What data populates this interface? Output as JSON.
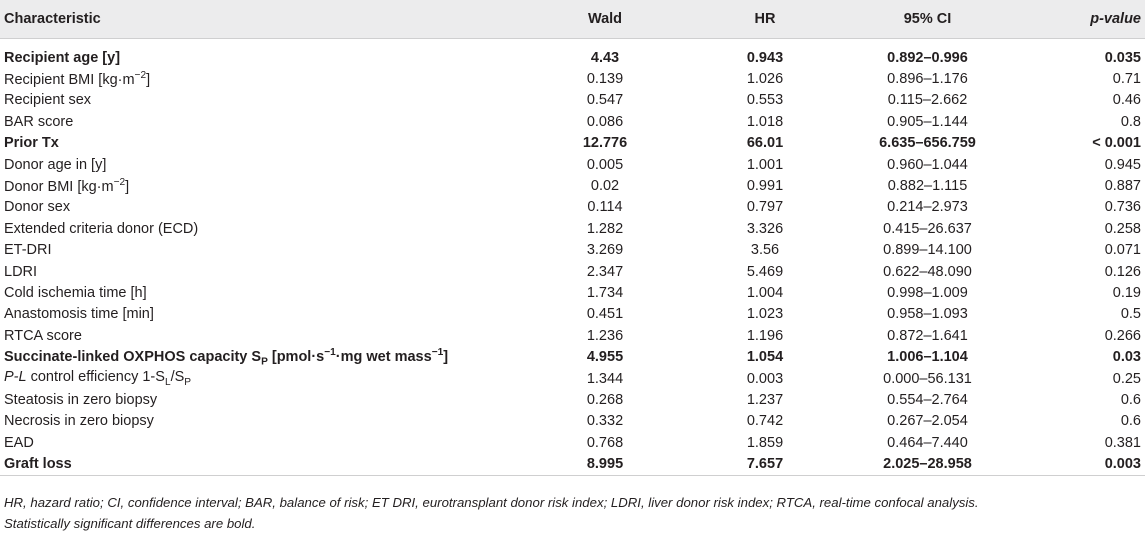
{
  "columns": [
    "Characteristic",
    "Wald",
    "HR",
    "95% CI",
    "p-value"
  ],
  "rows": [
    {
      "label": "Recipient age [y]",
      "wald": "4.43",
      "hr": "0.943",
      "ci": "0.892–0.996",
      "p": "0.035",
      "bold": true
    },
    {
      "label": "Recipient BMI [kg·m",
      "label_sup": "−2",
      "label_after": "]",
      "wald": "0.139",
      "hr": "1.026",
      "ci": "0.896–1.176",
      "p": "0.71",
      "bold": false
    },
    {
      "label": "Recipient sex",
      "wald": "0.547",
      "hr": "0.553",
      "ci": "0.115–2.662",
      "p": "0.46",
      "bold": false
    },
    {
      "label": "BAR score",
      "wald": "0.086",
      "hr": "1.018",
      "ci": "0.905–1.144",
      "p": "0.8",
      "bold": false
    },
    {
      "label": "Prior Tx",
      "wald": "12.776",
      "hr": "66.01",
      "ci": "6.635–656.759",
      "p": "< 0.001",
      "bold": true
    },
    {
      "label": "Donor age in [y]",
      "wald": "0.005",
      "hr": "1.001",
      "ci": "0.960–1.044",
      "p": "0.945",
      "bold": false
    },
    {
      "label": "Donor BMI [kg·m",
      "label_sup": "−2",
      "label_after": "]",
      "wald": "0.02",
      "hr": "0.991",
      "ci": "0.882–1.115",
      "p": "0.887",
      "bold": false
    },
    {
      "label": "Donor sex",
      "wald": "0.114",
      "hr": "0.797",
      "ci": "0.214–2.973",
      "p": "0.736",
      "bold": false
    },
    {
      "label": "Extended criteria donor (ECD)",
      "wald": "1.282",
      "hr": "3.326",
      "ci": "0.415–26.637",
      "p": "0.258",
      "bold": false
    },
    {
      "label": "ET-DRI",
      "wald": "3.269",
      "hr": "3.56",
      "ci": "0.899–14.100",
      "p": "0.071",
      "bold": false
    },
    {
      "label": "LDRI",
      "wald": "2.347",
      "hr": "5.469",
      "ci": "0.622–48.090",
      "p": "0.126",
      "bold": false
    },
    {
      "label": "Cold ischemia time [h]",
      "wald": "1.734",
      "hr": "1.004",
      "ci": "0.998–1.009",
      "p": "0.19",
      "bold": false
    },
    {
      "label": "Anastomosis time [min]",
      "wald": "0.451",
      "hr": "1.023",
      "ci": "0.958–1.093",
      "p": "0.5",
      "bold": false
    },
    {
      "label": "RTCA score",
      "wald": "1.236",
      "hr": "1.196",
      "ci": "0.872–1.641",
      "p": "0.266",
      "bold": false
    },
    {
      "label": "Succinate-linked OXPHOS capacity S",
      "label_sub": "P",
      "label_after": " [pmol·s",
      "label_sup2": "−1",
      "label_after2": "·mg wet mass",
      "label_sup3": "−1",
      "label_after3": "]",
      "wald": "4.955",
      "hr": "1.054",
      "ci": "1.006–1.104",
      "p": "0.03",
      "bold": true
    },
    {
      "label_italic": "P-L",
      "label": " control efficiency 1-S",
      "label_sub": "L",
      "label_after": "/S",
      "label_sub2": "P",
      "wald": "1.344",
      "hr": "0.003",
      "ci": "0.000–56.131",
      "p": "0.25",
      "bold": false
    },
    {
      "label": "Steatosis in zero biopsy",
      "wald": "0.268",
      "hr": "1.237",
      "ci": "0.554–2.764",
      "p": "0.6",
      "bold": false
    },
    {
      "label": "Necrosis in zero biopsy",
      "wald": "0.332",
      "hr": "0.742",
      "ci": "0.267–2.054",
      "p": "0.6",
      "bold": false
    },
    {
      "label": "EAD",
      "wald": "0.768",
      "hr": "1.859",
      "ci": "0.464–7.440",
      "p": "0.381",
      "bold": false
    },
    {
      "label": "Graft loss",
      "wald": "8.995",
      "hr": "7.657",
      "ci": "2.025–28.958",
      "p": "0.003",
      "bold": true
    }
  ],
  "footnotes": {
    "abbreviations": "HR, hazard ratio; CI, confidence interval; BAR, balance of risk; ET DRI, eurotransplant donor risk index; LDRI, liver donor risk index; RTCA, real-time confocal analysis.",
    "significance": "Statistically significant differences are bold."
  }
}
